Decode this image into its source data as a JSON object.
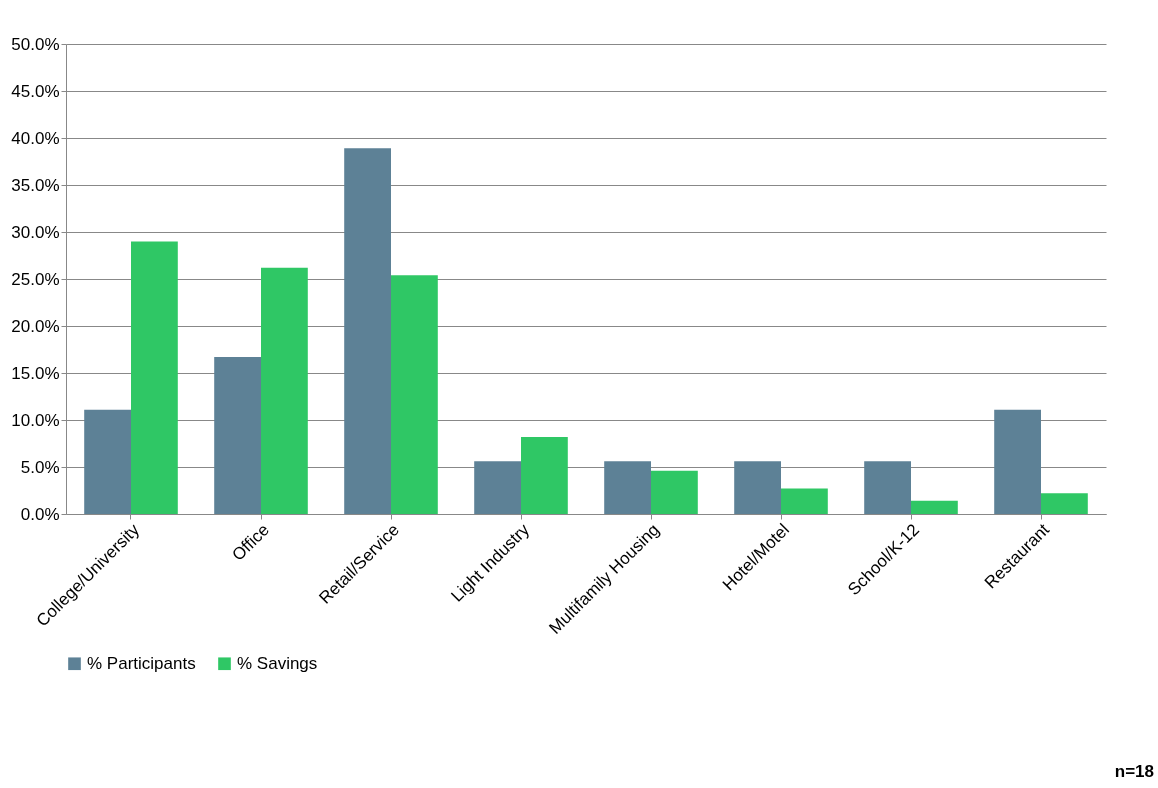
{
  "chart_data": {
    "type": "bar",
    "categories": [
      "College/University",
      "Office",
      "Retail/Service",
      "Light Industry",
      "Multifamily Housing",
      "Hotel/Motel",
      "School/K-12",
      "Restaurant"
    ],
    "series": [
      {
        "name": "% Participants",
        "color": "#5d8196",
        "values": [
          11.1,
          16.7,
          38.9,
          5.6,
          5.6,
          5.6,
          5.6,
          11.1
        ]
      },
      {
        "name": "% Savings",
        "color": "#2fc765",
        "values": [
          29.0,
          26.2,
          25.4,
          8.2,
          4.6,
          2.7,
          1.4,
          2.2
        ]
      }
    ],
    "ylim": [
      0,
      50
    ],
    "yticks": [
      {
        "value": 0,
        "label": "0.0%"
      },
      {
        "value": 5,
        "label": "5.0%"
      },
      {
        "value": 10,
        "label": "10.0%"
      },
      {
        "value": 15,
        "label": "15.0%"
      },
      {
        "value": 20,
        "label": "20.0%"
      },
      {
        "value": 25,
        "label": "25.0%"
      },
      {
        "value": 30,
        "label": "30.0%"
      },
      {
        "value": 35,
        "label": "35.0%"
      },
      {
        "value": 40,
        "label": "40.0%"
      },
      {
        "value": 45,
        "label": "45.0%"
      },
      {
        "value": 50,
        "label": "50.0%"
      }
    ],
    "grid": "y",
    "legend": "bottom",
    "annotations": [
      "n=18"
    ]
  }
}
